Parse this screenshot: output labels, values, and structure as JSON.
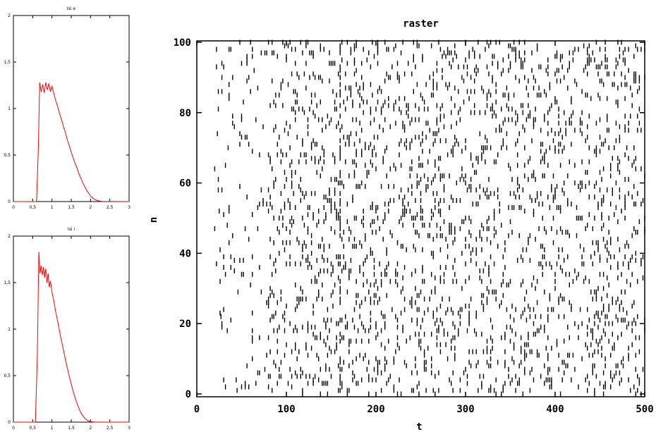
{
  "chart_data": [
    {
      "type": "line",
      "title": "Isi e",
      "xlim": [
        0,
        3
      ],
      "ylim": [
        0,
        2
      ],
      "x_ticks": [
        "0",
        "0,5",
        "1",
        "1,5",
        "2",
        "2,5",
        "3"
      ],
      "y_ticks": [
        "0",
        "0,5",
        "1",
        "1,5",
        "2"
      ],
      "line_color": "#ff0000",
      "series": [
        {
          "x": [
            0,
            0.6,
            0.65,
            0.68,
            0.72,
            0.76,
            0.8,
            0.84,
            0.88,
            0.92,
            0.96,
            1.0,
            1.05,
            1.1,
            1.15,
            1.2,
            1.25,
            1.3,
            1.35,
            1.4,
            1.45,
            1.5,
            1.55,
            1.6,
            1.65,
            1.7,
            1.75,
            1.8,
            1.85,
            1.9,
            1.95,
            2.0,
            2.05,
            2.1,
            2.15,
            2.2,
            2.3,
            3.0
          ],
          "y": [
            0,
            0,
            0.6,
            1.28,
            1.18,
            1.26,
            1.17,
            1.28,
            1.2,
            1.27,
            1.18,
            1.24,
            1.16,
            1.08,
            1.02,
            0.94,
            0.88,
            0.8,
            0.74,
            0.66,
            0.6,
            0.53,
            0.47,
            0.41,
            0.36,
            0.3,
            0.25,
            0.2,
            0.16,
            0.12,
            0.09,
            0.06,
            0.04,
            0.025,
            0.015,
            0.008,
            0.002,
            0
          ]
        }
      ]
    },
    {
      "type": "line",
      "title": "Isi i",
      "xlim": [
        0,
        3
      ],
      "ylim": [
        0,
        2
      ],
      "x_ticks": [
        "0",
        "0,5",
        "1",
        "1,5",
        "2",
        "2,5",
        "3"
      ],
      "y_ticks": [
        "0",
        "0,5",
        "1",
        "1,5",
        "2"
      ],
      "line_color": "#ff0000",
      "series": [
        {
          "x": [
            0,
            0.57,
            0.62,
            0.66,
            0.69,
            0.72,
            0.75,
            0.78,
            0.81,
            0.84,
            0.87,
            0.9,
            0.93,
            0.96,
            1.0,
            1.05,
            1.1,
            1.15,
            1.2,
            1.25,
            1.3,
            1.35,
            1.4,
            1.45,
            1.5,
            1.55,
            1.6,
            1.65,
            1.7,
            1.75,
            1.8,
            1.85,
            1.9,
            1.95,
            2.0,
            2.1,
            3.0
          ],
          "y": [
            0,
            0,
            0.7,
            1.83,
            1.6,
            1.68,
            1.58,
            1.67,
            1.55,
            1.65,
            1.5,
            1.6,
            1.45,
            1.52,
            1.4,
            1.3,
            1.18,
            1.08,
            0.97,
            0.87,
            0.77,
            0.67,
            0.58,
            0.49,
            0.41,
            0.33,
            0.26,
            0.2,
            0.15,
            0.1,
            0.07,
            0.04,
            0.025,
            0.012,
            0.005,
            0.001,
            0
          ]
        }
      ]
    },
    {
      "type": "scatter",
      "title": "raster",
      "xlabel": "t",
      "ylabel": "n",
      "xlim": [
        0,
        500
      ],
      "ylim": [
        0,
        100
      ],
      "x_ticks": [
        "0",
        "100",
        "200",
        "300",
        "400",
        "500"
      ],
      "y_ticks": [
        "0",
        "20",
        "40",
        "60",
        "80",
        "100"
      ],
      "marker": "vertical tick",
      "neurons": 100,
      "density_note_t": [
        20,
        50,
        80,
        500
      ],
      "spikes_per_neuron_approx": [
        1,
        2,
        8,
        9
      ],
      "example_spikes": [
        {
          "t": 22,
          "n": 98
        },
        {
          "t": 23,
          "n": 74
        },
        {
          "t": 24,
          "n": 58
        },
        {
          "t": 25,
          "n": 52
        },
        {
          "t": 26,
          "n": 32
        },
        {
          "t": 27,
          "n": 22
        },
        {
          "t": 28,
          "n": 19
        },
        {
          "t": 30,
          "n": 4
        },
        {
          "t": 35,
          "n": 70
        },
        {
          "t": 38,
          "n": 36
        },
        {
          "t": 40,
          "n": 79
        },
        {
          "t": 45,
          "n": 1
        },
        {
          "t": 160,
          "n": 10
        },
        {
          "t": 160,
          "n": 30
        },
        {
          "t": 160,
          "n": 50
        },
        {
          "t": 160,
          "n": 70
        },
        {
          "t": 160,
          "n": 90
        }
      ]
    }
  ]
}
